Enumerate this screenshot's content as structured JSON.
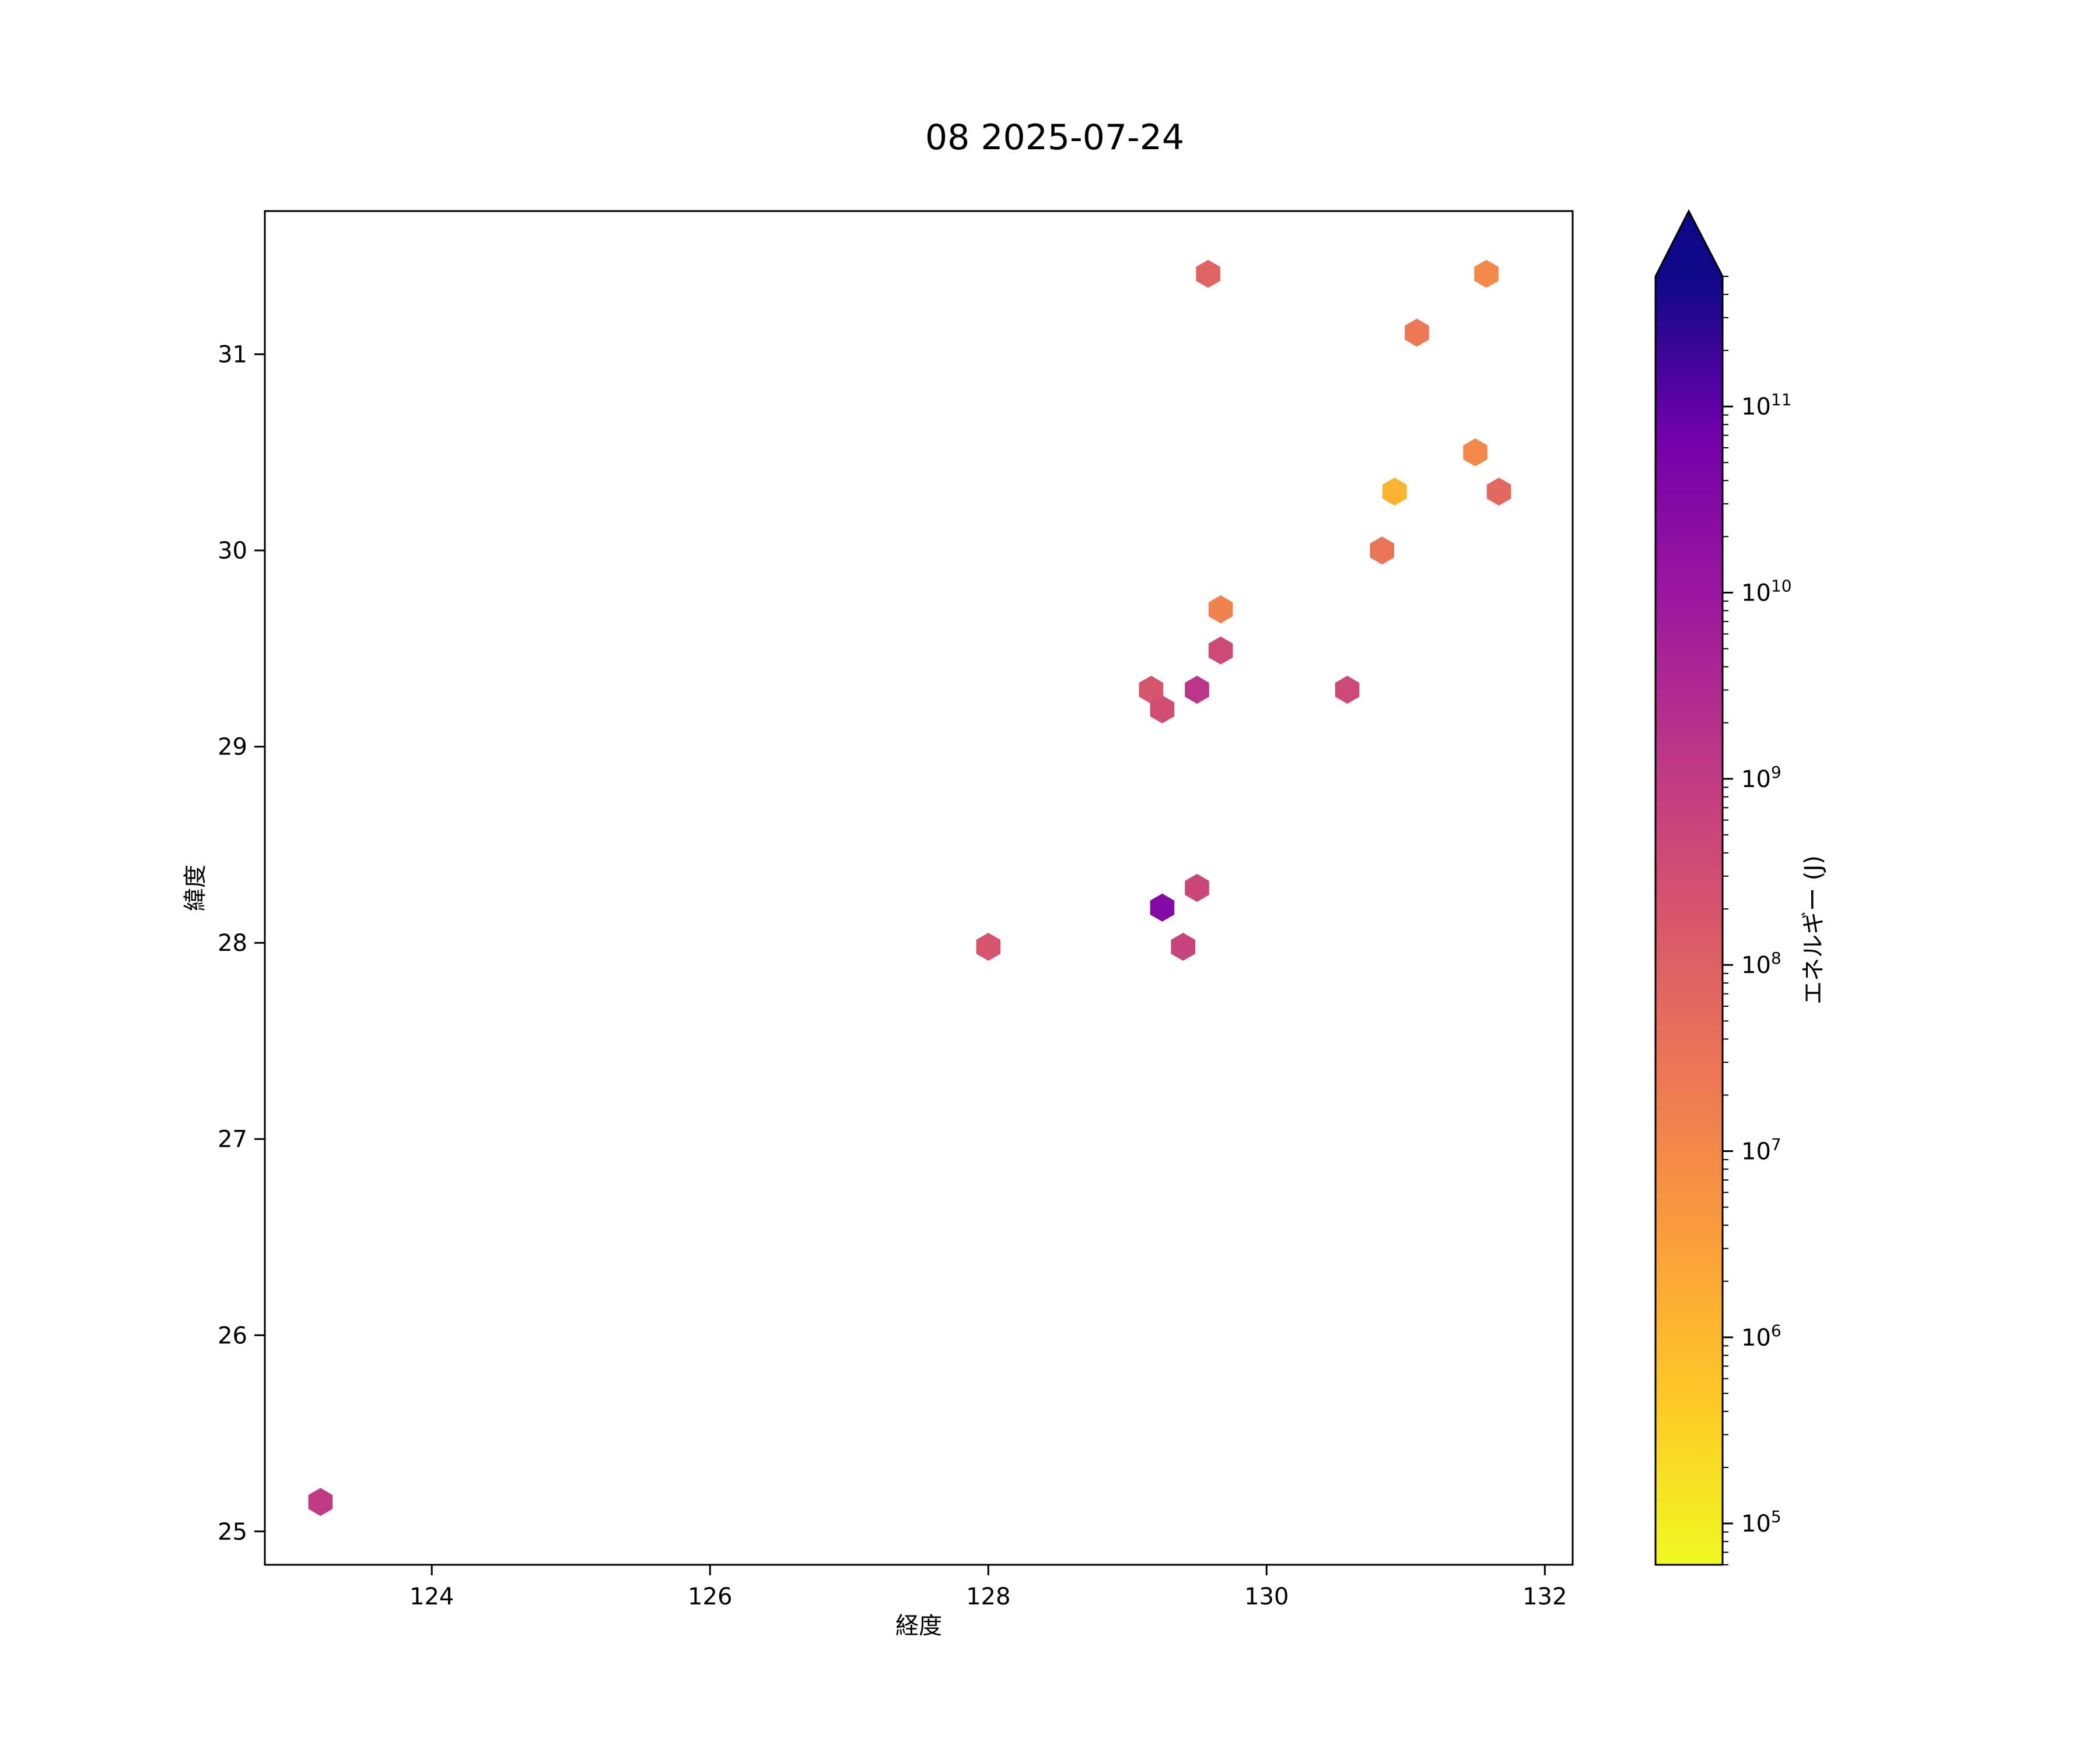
{
  "chart_data": {
    "type": "hexbin",
    "title": "08 2025-07-24",
    "xlabel": "経度",
    "ylabel": "緯度",
    "xlim": [
      122.8,
      132.2
    ],
    "ylim": [
      24.83,
      31.73
    ],
    "xticks": [
      124,
      126,
      128,
      130,
      132
    ],
    "yticks": [
      25,
      26,
      27,
      28,
      29,
      30,
      31
    ],
    "grid": false,
    "colorbar": {
      "label": "エネルギー (J)",
      "scale": "log",
      "colormap": "plasma_r",
      "range": [
        60000.0,
        500000000000.0
      ],
      "extend": "max",
      "extend_color": "#0d0887",
      "ticks": [
        {
          "exp": 5,
          "base": "10",
          "sup": "5"
        },
        {
          "exp": 6,
          "base": "10",
          "sup": "6"
        },
        {
          "exp": 7,
          "base": "10",
          "sup": "7"
        },
        {
          "exp": 8,
          "base": "10",
          "sup": "8"
        },
        {
          "exp": 9,
          "base": "10",
          "sup": "9"
        },
        {
          "exp": 10,
          "base": "10",
          "sup": "10"
        },
        {
          "exp": 11,
          "base": "10",
          "sup": "11"
        }
      ]
    },
    "points": [
      {
        "x": 123.2,
        "y": 25.15,
        "energy": 1000000000.0
      },
      {
        "x": 128.0,
        "y": 27.98,
        "energy": 200000000.0
      },
      {
        "x": 129.25,
        "y": 28.18,
        "energy": 30000000000.0
      },
      {
        "x": 129.4,
        "y": 27.98,
        "energy": 600000000.0
      },
      {
        "x": 129.5,
        "y": 28.28,
        "energy": 500000000.0
      },
      {
        "x": 129.17,
        "y": 29.29,
        "energy": 200000000.0
      },
      {
        "x": 129.25,
        "y": 29.19,
        "energy": 300000000.0
      },
      {
        "x": 129.5,
        "y": 29.29,
        "energy": 1500000000.0
      },
      {
        "x": 129.67,
        "y": 29.49,
        "energy": 400000000.0
      },
      {
        "x": 129.67,
        "y": 29.7,
        "energy": 15000000.0
      },
      {
        "x": 129.58,
        "y": 31.41,
        "energy": 80000000.0
      },
      {
        "x": 130.58,
        "y": 29.29,
        "energy": 400000000.0
      },
      {
        "x": 130.83,
        "y": 30.0,
        "energy": 30000000.0
      },
      {
        "x": 130.92,
        "y": 30.3,
        "energy": 1200000.0
      },
      {
        "x": 131.08,
        "y": 31.11,
        "energy": 25000000.0
      },
      {
        "x": 131.5,
        "y": 30.5,
        "energy": 10000000.0
      },
      {
        "x": 131.58,
        "y": 31.41,
        "energy": 10000000.0
      },
      {
        "x": 131.67,
        "y": 30.3,
        "energy": 60000000.0
      }
    ]
  }
}
